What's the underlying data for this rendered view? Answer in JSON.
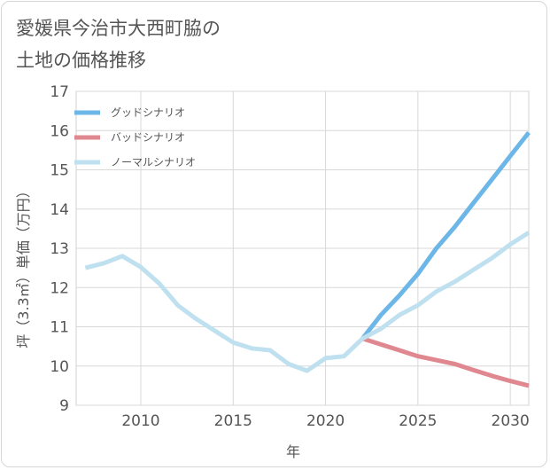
{
  "chart_data": {
    "type": "line",
    "title": "愛媛県今治市大西町脇の\n土地の価格推移",
    "xlabel": "年",
    "ylabel": "坪（3.3㎡）単価（万円）",
    "xlim": [
      2006.5,
      2031
    ],
    "ylim": [
      9,
      17
    ],
    "xticks": [
      2010,
      2015,
      2020,
      2025,
      2030
    ],
    "yticks": [
      9,
      10,
      11,
      12,
      13,
      14,
      15,
      16,
      17
    ],
    "grid": true,
    "legend_position": "top-left",
    "series": [
      {
        "name": "グッドシナリオ",
        "color": "#6cb6e8",
        "x": [
          2022,
          2023,
          2024,
          2025,
          2026,
          2027,
          2028,
          2029,
          2030,
          2031
        ],
        "values": [
          10.7,
          11.3,
          11.8,
          12.35,
          13.0,
          13.55,
          14.15,
          14.75,
          15.35,
          15.95
        ]
      },
      {
        "name": "バッドシナリオ",
        "color": "#e0888f",
        "x": [
          2022,
          2023,
          2024,
          2025,
          2026,
          2027,
          2028,
          2029,
          2030,
          2031
        ],
        "values": [
          10.7,
          10.55,
          10.4,
          10.25,
          10.15,
          10.05,
          9.9,
          9.75,
          9.62,
          9.5
        ]
      },
      {
        "name": "ノーマルシナリオ",
        "color": "#bfe0ef",
        "x": [
          2007,
          2008,
          2009,
          2010,
          2011,
          2012,
          2013,
          2014,
          2015,
          2016,
          2017,
          2018,
          2019,
          2020,
          2021,
          2022,
          2023,
          2024,
          2025,
          2026,
          2027,
          2028,
          2029,
          2030,
          2031
        ],
        "values": [
          12.5,
          12.62,
          12.8,
          12.52,
          12.1,
          11.55,
          11.2,
          10.9,
          10.6,
          10.45,
          10.4,
          10.05,
          9.88,
          10.2,
          10.25,
          10.7,
          10.95,
          11.3,
          11.55,
          11.9,
          12.15,
          12.45,
          12.75,
          13.1,
          13.4
        ]
      }
    ]
  }
}
